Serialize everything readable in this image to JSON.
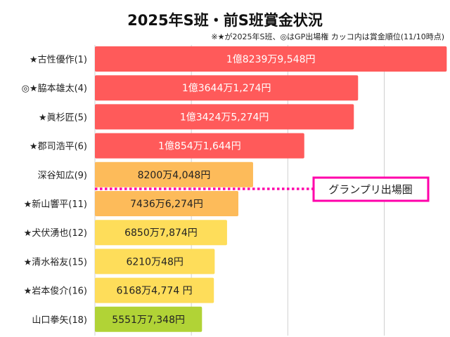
{
  "chart_data": {
    "type": "bar",
    "orientation": "horizontal",
    "title": "2025年S班・前S班賞金状況",
    "subtitle": "※★が2025年S班、◎はGP出場権 カッコ内は賞金順位(11/10時点)",
    "xlabel": "",
    "ylabel": "",
    "xlim": [
      0,
      183000000
    ],
    "grid": true,
    "grid_step": 50000000,
    "categories": [
      "★古性優作(1)",
      "◎★脇本雄太(4)",
      "★眞杉匠(5)",
      "★郡司浩平(6)",
      "深谷知広(9)",
      "★新山響平(11)",
      "★犬伏湧也(12)",
      "★清水裕友(15)",
      "★岩本俊介(16)",
      "山口拳矢(18)"
    ],
    "values": [
      182399548,
      136441274,
      134245274,
      108541644,
      82004048,
      74366274,
      68507874,
      62100048,
      61684774,
      55517348
    ],
    "data_labels": [
      "1億8239万9,548円",
      "1億3644万1,274円",
      "1億3424万5,274円",
      "1億854万1,644円",
      "8200万4,048円",
      "7436万6,274円",
      "6850万7,874円",
      "6210万48円",
      "6168万4,774 円",
      "5551万7,348円"
    ],
    "bar_colors": [
      "#ff5a5a",
      "#ff5a5a",
      "#ff5a5a",
      "#ff5a5a",
      "#fdbb5a",
      "#fdbb5a",
      "#fedd5a",
      "#fedd5a",
      "#fedd5a",
      "#b1d336"
    ],
    "label_colors": [
      "#ffffff",
      "#ffffff",
      "#ffffff",
      "#ffffff",
      "#222222",
      "#222222",
      "#222222",
      "#222222",
      "#222222",
      "#222222"
    ],
    "annotation": {
      "text": "グランプリ出場圏",
      "after_index": 4,
      "color": "#ff00aa"
    }
  }
}
